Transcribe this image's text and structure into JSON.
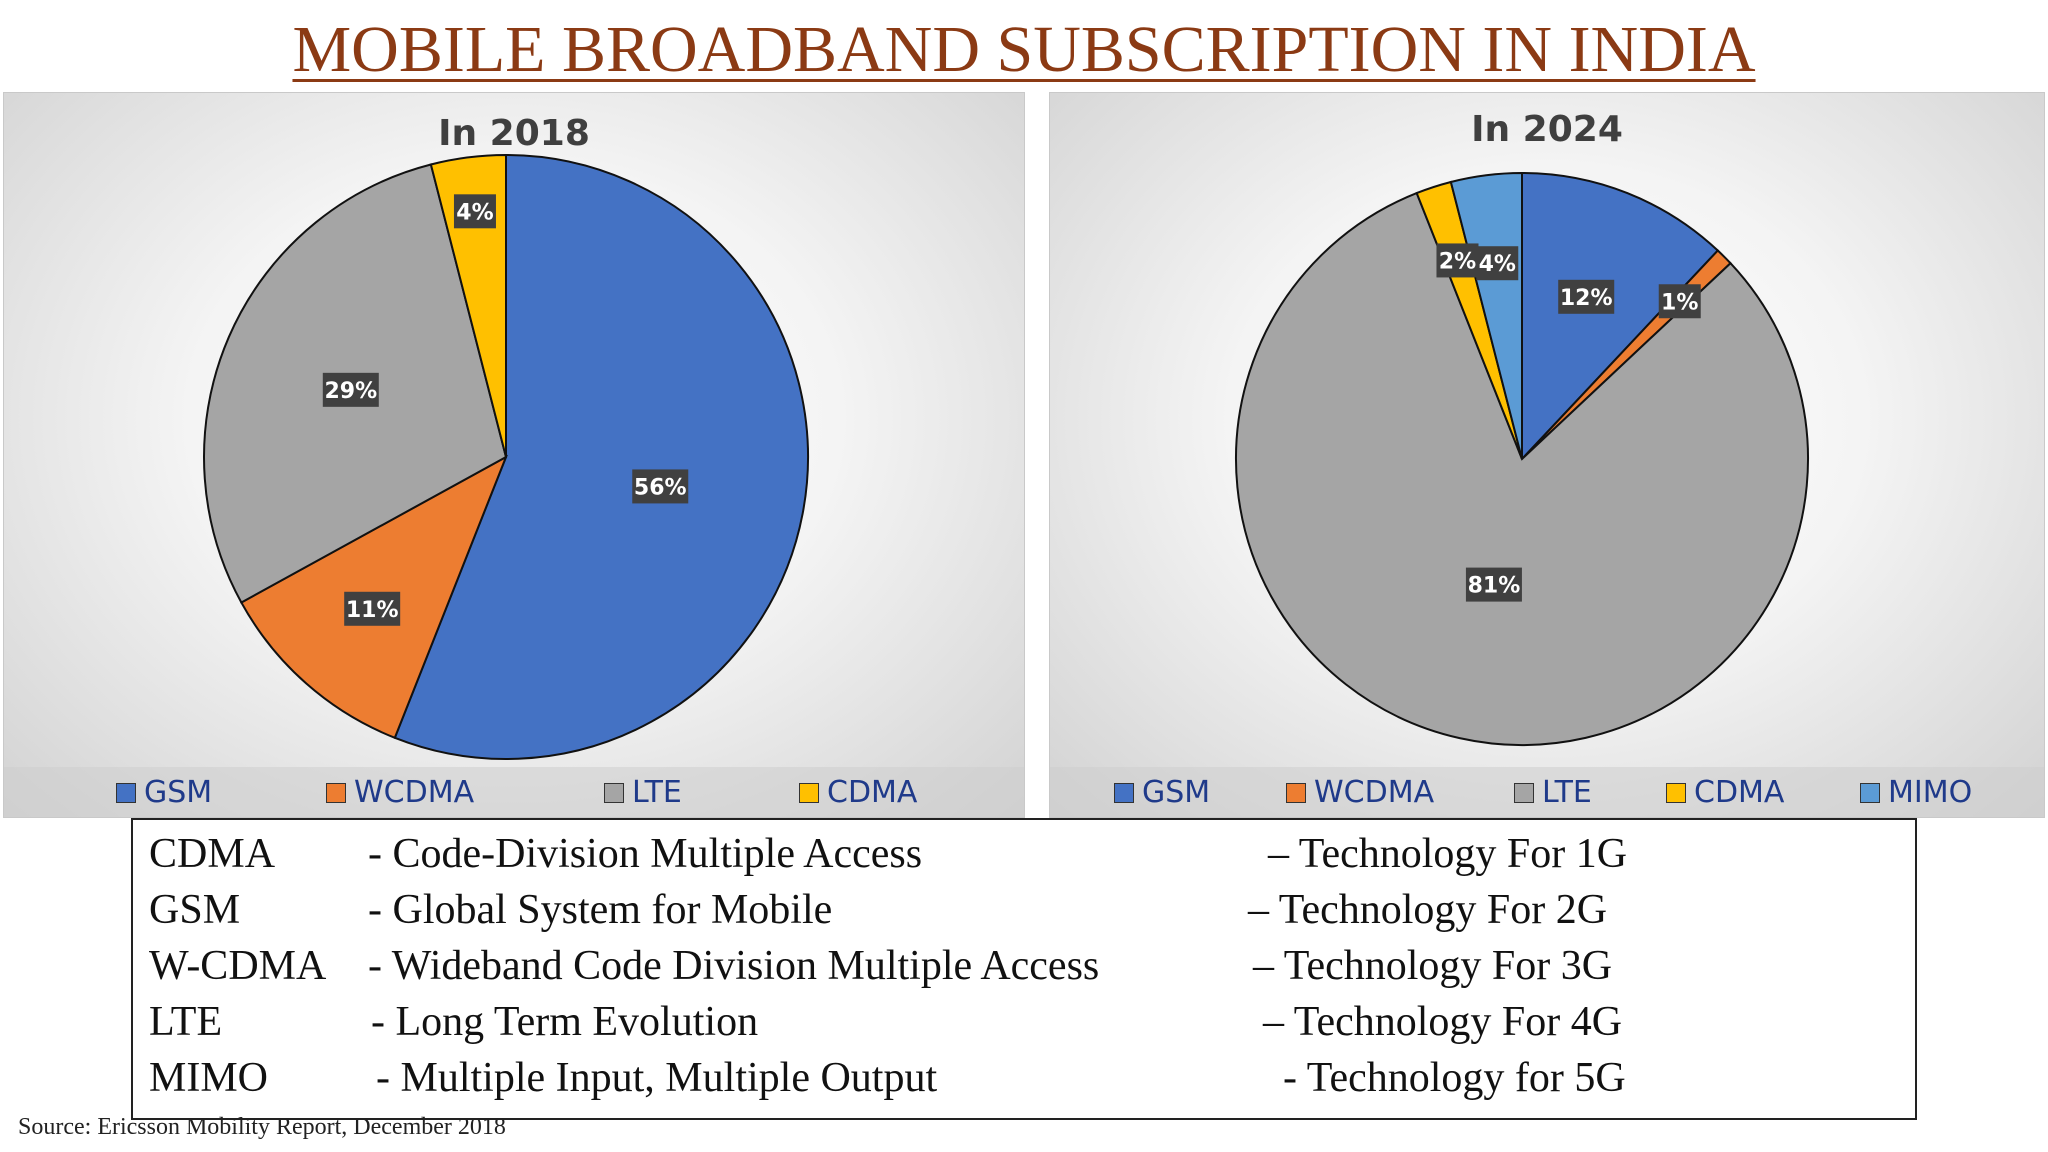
{
  "page_title": "MOBILE BROADBAND SUBSCRIPTION IN INDIA",
  "chart_data": [
    {
      "type": "pie",
      "title": "In 2018",
      "categories": [
        "GSM",
        "WCDMA",
        "LTE",
        "CDMA"
      ],
      "values": [
        56,
        11,
        29,
        4
      ],
      "labels": [
        "56%",
        "11%",
        "29%",
        "4%"
      ],
      "colors": [
        "#4472c4",
        "#ed7d31",
        "#a5a5a5",
        "#ffc000"
      ],
      "legend": "bottom"
    },
    {
      "type": "pie",
      "title": "In 2024",
      "categories": [
        "GSM",
        "WCDMA",
        "LTE",
        "CDMA",
        "MIMO"
      ],
      "values": [
        12,
        1,
        81,
        2,
        4
      ],
      "labels": [
        "12%",
        "1%",
        "81%",
        "2%",
        "4%"
      ],
      "colors": [
        "#4472c4",
        "#ed7d31",
        "#a5a5a5",
        "#ffc000",
        "#5b9bd5"
      ],
      "legend": "bottom"
    }
  ],
  "definitions": [
    {
      "abbr": "CDMA",
      "full": "- Code-Division Multiple Access",
      "tech": "– Technology For 1G"
    },
    {
      "abbr": "GSM",
      "full": "- Global System for Mobile",
      "tech": "– Technology For 2G"
    },
    {
      "abbr": "W-CDMA",
      "full": "- Wideband Code Division Multiple Access",
      "tech": "– Technology For 3G"
    },
    {
      "abbr": "LTE",
      "full": "- Long Term Evolution",
      "tech": "– Technology For 4G"
    },
    {
      "abbr": "MIMO",
      "full": "- Multiple Input, Multiple Output",
      "tech": "- Technology for 5G"
    }
  ],
  "source": "Source: Ericsson Mobility Report, December 2018"
}
